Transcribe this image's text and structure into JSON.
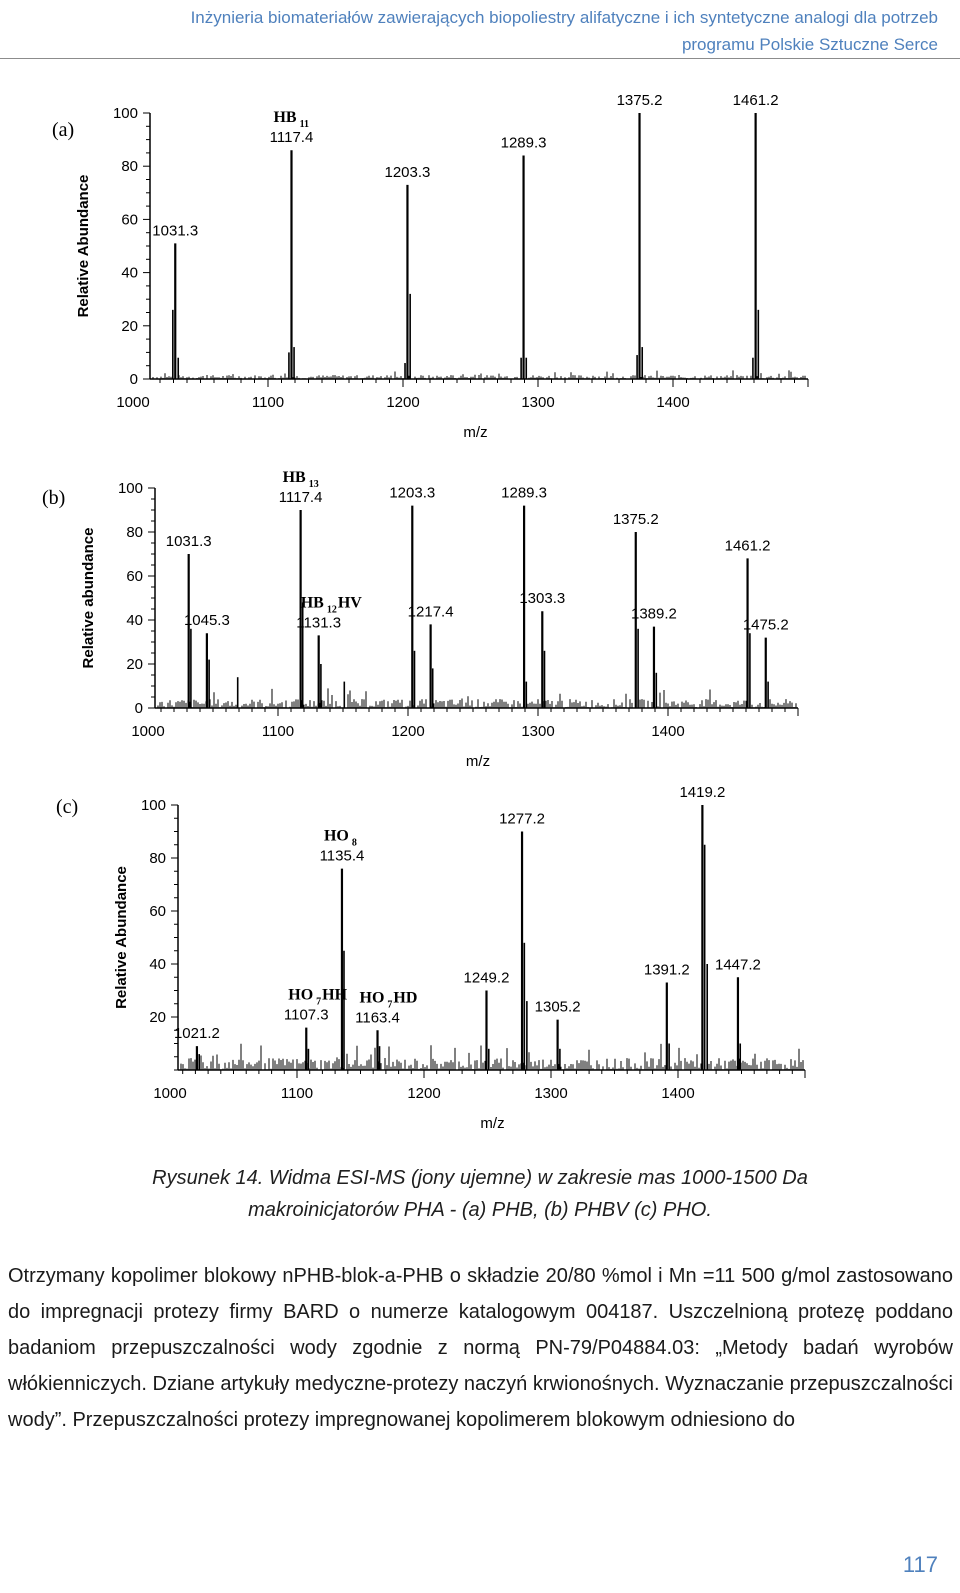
{
  "header": {
    "line1": "Inżynieria biomateriałów zawierających biopoliestry alifatyczne i ich syntetyczne analogi dla potrzeb",
    "line2": "programu Polskie Sztuczne Serce"
  },
  "caption": {
    "line1": "Rysunek 14. Widma ESI-MS (jony ujemne) w zakresie mas 1000-1500 Da",
    "line2": "makroinicjatorów  PHA - (a) PHB, (b) PHBV (c) PHO."
  },
  "paragraph": {
    "text": "Otrzymany kopolimer blokowy nPHB-blok-a-PHB o składzie 20/80 %mol i Mn =11 500 g/mol zastosowano do impregnacji protezy firmy BARD o numerze katalogowym 004187. Uszczelnioną protezę poddano badaniom przepuszczalności wody zgodnie z normą PN-79/P04884.03: „Metody badań wyrobów włókienniczych. Dziane artykuły medyczne-protezy naczyń krwionośnych. Wyznaczanie przepuszczalności wody”. Przepuszczalności protezy impregnowanej kopolimerem blokowym odniesiono do"
  },
  "page_number": "117",
  "chart_data": [
    {
      "type": "bar",
      "panel": "(a)",
      "xlabel": "m/z",
      "ylabel": "Relative Abundance",
      "xlim": [
        1000,
        1500
      ],
      "ylim": [
        0,
        100
      ],
      "xticks": [
        1000,
        1100,
        1200,
        1300,
        1400
      ],
      "yticks": [
        0,
        20,
        40,
        60,
        80,
        100
      ],
      "peaks": [
        {
          "mz": 1031.3,
          "value": 51,
          "label": "1031.3"
        },
        {
          "mz": 1117.4,
          "value": 86,
          "label": "1117.4"
        },
        {
          "mz": 1203.3,
          "value": 73,
          "label": "1203.3"
        },
        {
          "mz": 1289.3,
          "value": 84,
          "label": "1289.3"
        },
        {
          "mz": 1375.2,
          "value": 100,
          "label": "1375.2"
        },
        {
          "mz": 1461.2,
          "value": 100,
          "label": "1461.2"
        }
      ],
      "minor_peaks": [
        {
          "mz": 1029.5,
          "value": 26
        },
        {
          "mz": 1033.5,
          "value": 8
        },
        {
          "mz": 1115.5,
          "value": 10
        },
        {
          "mz": 1119.3,
          "value": 12
        },
        {
          "mz": 1201.5,
          "value": 6
        },
        {
          "mz": 1205.3,
          "value": 32
        },
        {
          "mz": 1287.5,
          "value": 8
        },
        {
          "mz": 1291.3,
          "value": 8
        },
        {
          "mz": 1373.4,
          "value": 9
        },
        {
          "mz": 1377.2,
          "value": 12
        },
        {
          "mz": 1459.2,
          "value": 8
        },
        {
          "mz": 1463.2,
          "value": 26
        }
      ],
      "annotations": [
        {
          "text": "HB",
          "sub": "11",
          "near_mz": 1117.4
        }
      ]
    },
    {
      "type": "bar",
      "panel": "(b)",
      "xlabel": "m/z",
      "ylabel": "Relative abundance",
      "xlim": [
        1000,
        1500
      ],
      "ylim": [
        0,
        100
      ],
      "xticks": [
        1000,
        1100,
        1200,
        1300,
        1400
      ],
      "yticks": [
        0,
        20,
        40,
        60,
        80,
        100
      ],
      "peaks": [
        {
          "mz": 1031.3,
          "value": 70,
          "label": "1031.3"
        },
        {
          "mz": 1045.3,
          "value": 34,
          "label": "1045.3"
        },
        {
          "mz": 1117.4,
          "value": 90,
          "label": "1117.4"
        },
        {
          "mz": 1131.3,
          "value": 33,
          "label": "1131.3"
        },
        {
          "mz": 1203.3,
          "value": 92,
          "label": "1203.3"
        },
        {
          "mz": 1217.4,
          "value": 38,
          "label": "1217.4"
        },
        {
          "mz": 1289.3,
          "value": 92,
          "label": "1289.3"
        },
        {
          "mz": 1303.3,
          "value": 44,
          "label": "1303.3"
        },
        {
          "mz": 1375.2,
          "value": 80,
          "label": "1375.2"
        },
        {
          "mz": 1389.2,
          "value": 37,
          "label": "1389.2"
        },
        {
          "mz": 1461.2,
          "value": 68,
          "label": "1461.2"
        },
        {
          "mz": 1475.2,
          "value": 32,
          "label": "1475.2"
        }
      ],
      "minor_peaks": [
        {
          "mz": 1033.0,
          "value": 36
        },
        {
          "mz": 1047.0,
          "value": 22
        },
        {
          "mz": 1069.0,
          "value": 14
        },
        {
          "mz": 1119.0,
          "value": 48
        },
        {
          "mz": 1133.0,
          "value": 20
        },
        {
          "mz": 1151.0,
          "value": 12
        },
        {
          "mz": 1205.0,
          "value": 26
        },
        {
          "mz": 1219.0,
          "value": 18
        },
        {
          "mz": 1291.0,
          "value": 12
        },
        {
          "mz": 1305.0,
          "value": 26
        },
        {
          "mz": 1377.0,
          "value": 36
        },
        {
          "mz": 1391.0,
          "value": 16
        },
        {
          "mz": 1463.0,
          "value": 34
        },
        {
          "mz": 1477.0,
          "value": 12
        }
      ],
      "annotations": [
        {
          "text": "HB",
          "sub": "13",
          "near_mz": 1117.4
        },
        {
          "text": "HB",
          "sub": "12",
          "suffix": "HV",
          "near_mz": 1131.3
        }
      ]
    },
    {
      "type": "bar",
      "panel": "(c)",
      "xlabel": "m/z",
      "ylabel": "Relative Abundance",
      "xlim": [
        1000,
        1500
      ],
      "ylim": [
        0,
        100
      ],
      "xticks": [
        1000,
        1100,
        1200,
        1300,
        1400
      ],
      "yticks": [
        20,
        40,
        60,
        80,
        100
      ],
      "peaks": [
        {
          "mz": 1021.2,
          "value": 9,
          "label": "1021.2"
        },
        {
          "mz": 1107.3,
          "value": 16,
          "label": "1107.3"
        },
        {
          "mz": 1135.4,
          "value": 76,
          "label": "1135.4"
        },
        {
          "mz": 1163.4,
          "value": 15,
          "label": "1163.4"
        },
        {
          "mz": 1249.2,
          "value": 30,
          "label": "1249.2"
        },
        {
          "mz": 1277.2,
          "value": 90,
          "label": "1277.2"
        },
        {
          "mz": 1305.2,
          "value": 19,
          "label": "1305.2"
        },
        {
          "mz": 1391.2,
          "value": 33,
          "label": "1391.2"
        },
        {
          "mz": 1419.2,
          "value": 100,
          "label": "1419.2"
        },
        {
          "mz": 1447.2,
          "value": 35,
          "label": "1447.2"
        }
      ],
      "minor_peaks": [
        {
          "mz": 1023.0,
          "value": 6
        },
        {
          "mz": 1109.0,
          "value": 8
        },
        {
          "mz": 1137.0,
          "value": 45
        },
        {
          "mz": 1165.0,
          "value": 9
        },
        {
          "mz": 1251.0,
          "value": 8
        },
        {
          "mz": 1279.0,
          "value": 48
        },
        {
          "mz": 1281.0,
          "value": 26
        },
        {
          "mz": 1307.0,
          "value": 8
        },
        {
          "mz": 1393.0,
          "value": 10
        },
        {
          "mz": 1421.0,
          "value": 85
        },
        {
          "mz": 1423.0,
          "value": 40
        },
        {
          "mz": 1449.0,
          "value": 10
        }
      ],
      "annotations": [
        {
          "text": "HO",
          "sub": "8",
          "near_mz": 1135.4
        },
        {
          "text": "HO",
          "sub": "7",
          "suffix": "HH",
          "near_mz": 1107.3
        },
        {
          "text": "HO",
          "sub": "7",
          "suffix": "HD",
          "near_mz": 1163.4
        }
      ]
    }
  ]
}
